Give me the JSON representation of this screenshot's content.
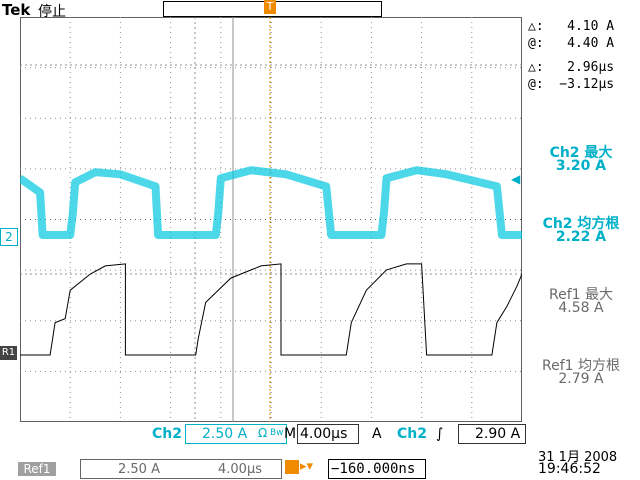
{
  "header": {
    "brand": "Tek",
    "run_state": "停止"
  },
  "cursor_readouts": {
    "volt_delta": "△:   4.10 A",
    "volt_at": "@:   4.40 A",
    "time_delta": "△:   2.96µs",
    "time_at": "@:  −3.12µs"
  },
  "measurements": [
    {
      "label": "Ch2 最大",
      "value": "3.20 A"
    },
    {
      "label": "Ch2 均方根",
      "value": "2.22 A"
    },
    {
      "label": "Ref1 最大",
      "value": "4.58 A"
    },
    {
      "label": "Ref1 均方根",
      "value": "2.79 A"
    }
  ],
  "channel_markers": {
    "ch2": "2",
    "ref1": "R1",
    "trigger": "T"
  },
  "status_bar": {
    "ch_name": "Ch2",
    "ch_scale": "2.50 A",
    "ch_units_icon": "Ω",
    "ch_bw": "Bw",
    "timebase_prefix": "M",
    "timebase": "4.00µs",
    "trigger_mode": "A",
    "trigger_source": "Ch2",
    "trigger_slope": "∫",
    "trigger_level": "2.90 A"
  },
  "ref_bar": {
    "tag": "Ref1",
    "scale": "2.50 A",
    "timebase": "4.00µs",
    "position": "−160.000ns"
  },
  "datetime": {
    "date": "31 1月  2008",
    "time": "19:46:52"
  },
  "colors": {
    "ch2": "#00c8e0",
    "ref1": "#000000",
    "trigger": "#f08a00",
    "grid": "#808080"
  },
  "chart_data": {
    "type": "line",
    "series": [
      {
        "name": "Ch2",
        "points": [
          [
            0,
            2.8
          ],
          [
            0.4,
            2.1
          ],
          [
            0.45,
            0
          ],
          [
            1.0,
            0
          ],
          [
            1.05,
            1.0
          ],
          [
            1.1,
            2.6
          ],
          [
            1.5,
            3.1
          ],
          [
            2.0,
            3.0
          ],
          [
            2.7,
            2.4
          ],
          [
            2.75,
            0
          ],
          [
            3.9,
            0
          ],
          [
            3.95,
            1.1
          ],
          [
            4.0,
            2.8
          ],
          [
            4.6,
            3.2
          ],
          [
            5.3,
            3.0
          ],
          [
            6.1,
            2.4
          ],
          [
            6.2,
            0
          ],
          [
            7.2,
            0
          ],
          [
            7.25,
            1.1
          ],
          [
            7.3,
            2.8
          ],
          [
            7.9,
            3.2
          ],
          [
            8.5,
            3.0
          ],
          [
            9.5,
            2.4
          ],
          [
            9.6,
            0
          ],
          [
            10,
            0
          ]
        ]
      },
      {
        "name": "Ref1",
        "points": [
          [
            0,
            0
          ],
          [
            0.6,
            0
          ],
          [
            0.65,
            0.8
          ],
          [
            0.7,
            1.6
          ],
          [
            0.9,
            1.8
          ],
          [
            1.0,
            3.2
          ],
          [
            1.4,
            4.0
          ],
          [
            1.7,
            4.4
          ],
          [
            2.1,
            4.5
          ],
          [
            2.1,
            0
          ],
          [
            3.5,
            0
          ],
          [
            3.55,
            0.8
          ],
          [
            3.7,
            2.6
          ],
          [
            4.2,
            3.8
          ],
          [
            4.8,
            4.4
          ],
          [
            5.2,
            4.5
          ],
          [
            5.2,
            0
          ],
          [
            6.5,
            0
          ],
          [
            6.6,
            1.6
          ],
          [
            6.9,
            3.2
          ],
          [
            7.3,
            4.2
          ],
          [
            7.7,
            4.5
          ],
          [
            8.0,
            4.5
          ],
          [
            8.1,
            0
          ],
          [
            9.4,
            0
          ],
          [
            9.5,
            1.6
          ],
          [
            9.7,
            2.4
          ],
          [
            9.9,
            3.4
          ],
          [
            10,
            4.0
          ]
        ]
      }
    ]
  }
}
